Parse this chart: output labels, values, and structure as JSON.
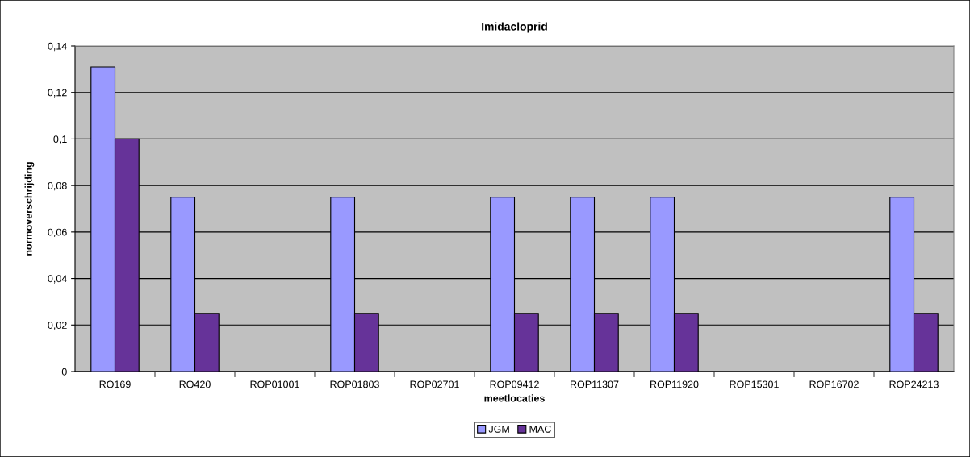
{
  "chart_data": {
    "type": "bar",
    "title": "Imidacloprid",
    "xlabel": "meetlocaties",
    "ylabel": "normoverschrijding",
    "categories": [
      "RO169",
      "RO420",
      "ROP01001",
      "ROP01803",
      "ROP02701",
      "ROP09412",
      "ROP11307",
      "ROP11920",
      "ROP15301",
      "ROP16702",
      "ROP24213"
    ],
    "series": [
      {
        "name": "JGM",
        "color": "#9999ff",
        "values": [
          0.131,
          0.075,
          null,
          0.075,
          null,
          0.075,
          0.075,
          0.075,
          null,
          null,
          0.075
        ]
      },
      {
        "name": "MAC",
        "color": "#663399",
        "values": [
          0.1,
          0.025,
          null,
          0.025,
          null,
          0.025,
          0.025,
          0.025,
          null,
          null,
          0.025
        ]
      }
    ],
    "ylim": [
      0,
      0.14
    ],
    "yticks": [
      0,
      {
        "value": 0.02,
        "label": "0,02"
      },
      {
        "value": 0.04,
        "label": "0,04"
      },
      {
        "value": 0.06,
        "label": "0,06"
      },
      {
        "value": 0.08,
        "label": "0,08"
      },
      {
        "value": 0.1,
        "label": "0,1"
      },
      {
        "value": 0.12,
        "label": "0,12"
      },
      {
        "value": 0.14,
        "label": "0,14"
      }
    ],
    "grid": "y",
    "legend": "bottom"
  }
}
